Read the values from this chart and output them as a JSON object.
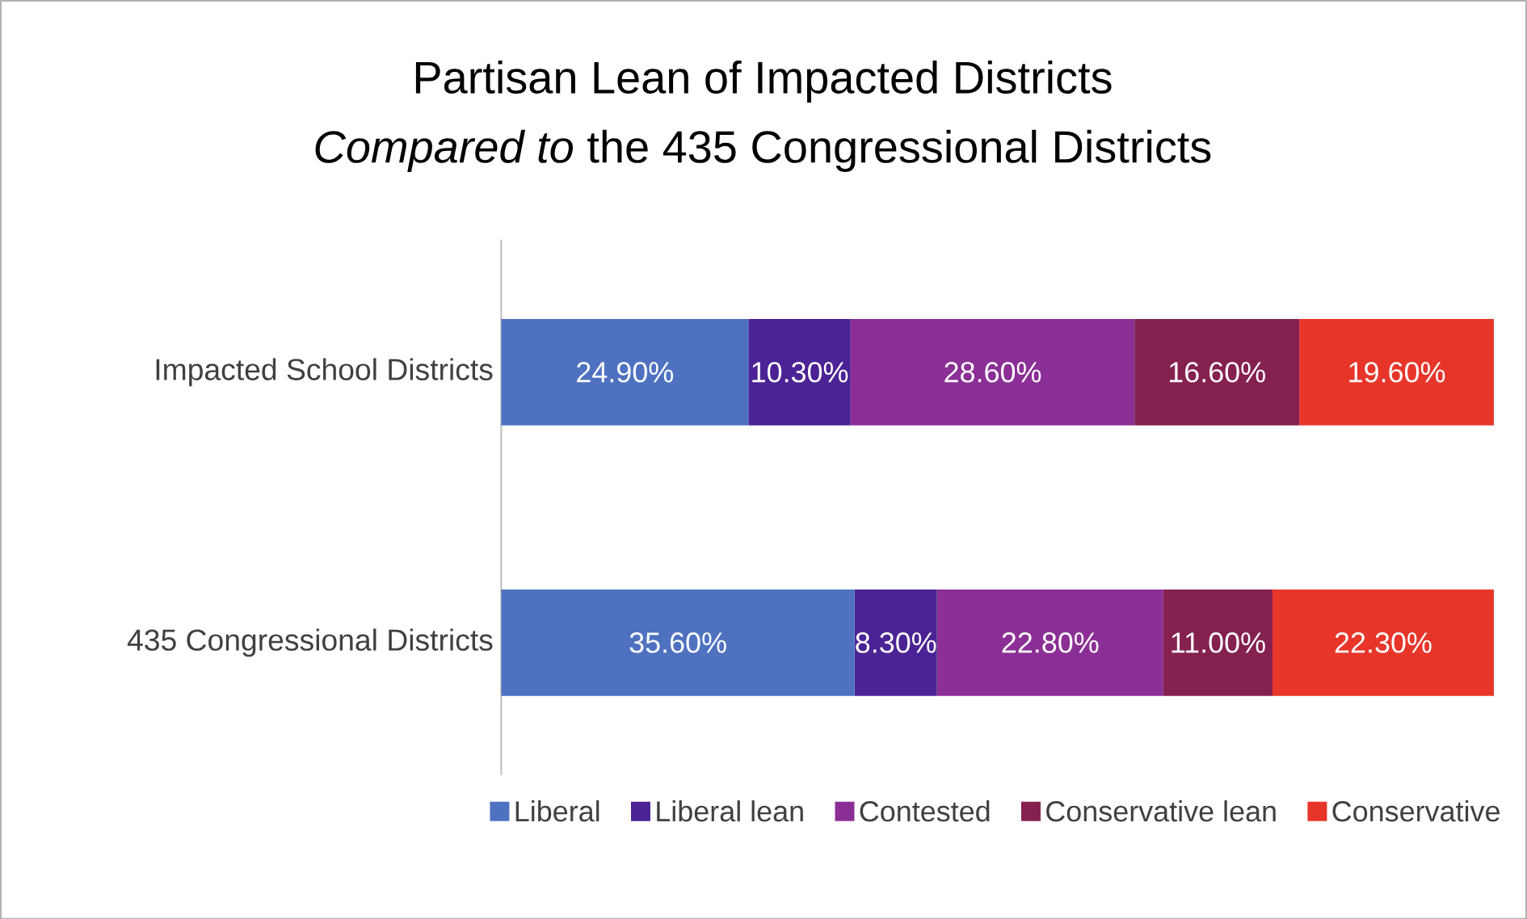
{
  "chart_data": {
    "type": "bar",
    "orientation": "horizontal",
    "stacked": true,
    "title": "Partisan Lean of Impacted Districts",
    "subtitle": "*Compared to* the 435 Congressional Districts",
    "categories": [
      "Impacted School Districts",
      "435 Congressional Districts"
    ],
    "series": [
      {
        "name": "Liberal",
        "color": "#4f72c0",
        "values": [
          24.9,
          35.6
        ],
        "value_labels": [
          "24.90%",
          "35.60%"
        ]
      },
      {
        "name": "Liberal lean",
        "color": "#4b2394",
        "values": [
          10.3,
          8.3
        ],
        "value_labels": [
          "10.30%",
          "8.30%"
        ]
      },
      {
        "name": "Contested",
        "color": "#8b2f96",
        "values": [
          28.6,
          22.8
        ],
        "value_labels": [
          "28.60%",
          "22.80%"
        ]
      },
      {
        "name": "Conservative lean",
        "color": "#85214f",
        "values": [
          16.6,
          11.0
        ],
        "value_labels": [
          "16.60%",
          "11.00%"
        ]
      },
      {
        "name": "Conservative",
        "color": "#e8352a",
        "values": [
          19.6,
          22.3
        ],
        "value_labels": [
          "19.60%",
          "22.30%"
        ]
      }
    ],
    "legend": "bottom"
  }
}
